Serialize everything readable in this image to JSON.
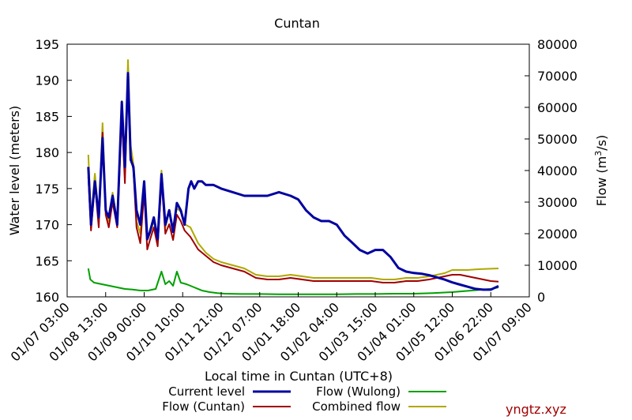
{
  "chart_data": {
    "type": "line",
    "title": "Cuntan",
    "xlabel": "Local time in Cuntan (UTC+8)",
    "ylabel_left": "Water level (meters)",
    "ylabel_right": "Flow (m",
    "ylabel_right_sup": "3",
    "ylabel_right_tail": "/s)",
    "x_ticks": [
      "01/07 03:00",
      "01/08 13:00",
      "01/09 00:00",
      "01/10 10:00",
      "01/11 21:00",
      "01/12 07:00",
      "01/01 18:00",
      "01/02 04:00",
      "01/03 15:00",
      "01/04 01:00",
      "01/05 12:00",
      "01/06 22:00",
      "01/07 09:00"
    ],
    "y_left_ticks": [
      160,
      165,
      170,
      175,
      180,
      185,
      190,
      195
    ],
    "y_right_ticks": [
      0,
      10000,
      20000,
      30000,
      40000,
      50000,
      60000,
      70000,
      80000
    ],
    "ylim_left": [
      160,
      195
    ],
    "ylim_right": [
      0,
      80000
    ],
    "x_range": [
      0,
      12
    ],
    "series": [
      {
        "name": "Current level",
        "axis": "left",
        "color": "#0000a0",
        "x": [
          0.55,
          0.62,
          0.72,
          0.82,
          0.92,
          1.0,
          1.08,
          1.18,
          1.3,
          1.42,
          1.5,
          1.58,
          1.65,
          1.72,
          1.8,
          1.9,
          2.0,
          2.08,
          2.15,
          2.25,
          2.35,
          2.45,
          2.55,
          2.65,
          2.75,
          2.85,
          2.95,
          3.05,
          3.15,
          3.22,
          3.3,
          3.4,
          3.5,
          3.6,
          3.8,
          4.0,
          4.3,
          4.6,
          4.9,
          5.2,
          5.5,
          5.8,
          6.0,
          6.2,
          6.4,
          6.6,
          6.8,
          7.0,
          7.2,
          7.4,
          7.6,
          7.8,
          8.0,
          8.2,
          8.4,
          8.6,
          8.8,
          9.0,
          9.2,
          9.4,
          9.6,
          9.8,
          10.0,
          10.2,
          10.4,
          10.6,
          10.8,
          11.0,
          11.2
        ],
        "y": [
          178,
          170,
          176,
          171,
          182,
          172,
          171,
          174,
          170,
          187,
          178,
          191,
          179,
          178,
          172,
          170,
          176,
          168,
          169,
          171,
          168,
          177,
          170,
          172,
          169,
          173,
          172,
          170,
          175,
          176,
          175,
          176,
          176,
          175.5,
          175.5,
          175,
          174.5,
          174,
          174,
          174,
          174.5,
          174,
          173.5,
          172,
          171,
          170.5,
          170.5,
          170,
          168.5,
          167.5,
          166.5,
          166,
          166.5,
          166.5,
          165.5,
          164,
          163.5,
          163.3,
          163.2,
          163,
          162.7,
          162.4,
          162,
          161.7,
          161.4,
          161.1,
          161,
          161,
          161.5
        ]
      },
      {
        "name": "Flow (Cuntan)",
        "axis": "right",
        "color": "#a00000",
        "x": [
          0.55,
          0.62,
          0.72,
          0.82,
          0.92,
          1.0,
          1.08,
          1.18,
          1.3,
          1.42,
          1.5,
          1.58,
          1.65,
          1.72,
          1.8,
          1.9,
          2.0,
          2.08,
          2.15,
          2.25,
          2.35,
          2.45,
          2.55,
          2.65,
          2.75,
          2.85,
          2.95,
          3.05,
          3.2,
          3.4,
          3.6,
          3.8,
          4.0,
          4.3,
          4.6,
          4.9,
          5.2,
          5.5,
          5.8,
          6.1,
          6.4,
          6.7,
          7.0,
          7.3,
          7.6,
          7.9,
          8.2,
          8.5,
          8.8,
          9.1,
          9.4,
          9.6,
          9.8,
          10.0,
          10.2,
          10.4,
          10.6,
          10.8,
          11.0,
          11.2
        ],
        "y": [
          38000,
          21000,
          36000,
          22000,
          52000,
          26000,
          22000,
          30000,
          22000,
          57000,
          36000,
          70000,
          45000,
          40000,
          22000,
          17000,
          33000,
          15000,
          18000,
          22000,
          16000,
          37000,
          20000,
          23000,
          18000,
          26000,
          24000,
          21000,
          19000,
          15000,
          13000,
          11000,
          10000,
          9000,
          8000,
          6000,
          5500,
          5500,
          6000,
          5500,
          5000,
          5000,
          5000,
          5000,
          5000,
          5000,
          4500,
          4500,
          5000,
          5000,
          5500,
          6000,
          6500,
          7000,
          7000,
          6500,
          6000,
          5500,
          5000,
          4800
        ]
      },
      {
        "name": "Flow (Wulong)",
        "axis": "right",
        "color": "#00a000",
        "x": [
          0.55,
          0.6,
          0.7,
          0.9,
          1.1,
          1.3,
          1.5,
          1.7,
          1.9,
          2.1,
          2.3,
          2.45,
          2.55,
          2.65,
          2.75,
          2.85,
          2.95,
          3.1,
          3.3,
          3.5,
          3.7,
          3.9,
          4.1,
          4.5,
          5.0,
          5.5,
          6.0,
          6.5,
          7.0,
          7.5,
          8.0,
          8.5,
          9.0,
          9.5,
          10.0,
          10.5,
          11.0,
          11.2
        ],
        "y": [
          9000,
          5500,
          4500,
          4000,
          3500,
          3000,
          2500,
          2300,
          2000,
          2000,
          2500,
          8000,
          4000,
          5000,
          3500,
          8000,
          4500,
          4000,
          3000,
          2000,
          1500,
          1200,
          1000,
          900,
          900,
          800,
          800,
          800,
          800,
          900,
          900,
          1000,
          1000,
          1200,
          1500,
          2000,
          2500,
          3000
        ]
      },
      {
        "name": "Combined flow",
        "axis": "right",
        "color": "#b0a800",
        "x": [
          0.55,
          0.62,
          0.72,
          0.82,
          0.92,
          1.0,
          1.08,
          1.18,
          1.3,
          1.42,
          1.5,
          1.58,
          1.65,
          1.72,
          1.8,
          1.9,
          2.0,
          2.08,
          2.15,
          2.25,
          2.35,
          2.45,
          2.55,
          2.65,
          2.75,
          2.85,
          2.95,
          3.05,
          3.2,
          3.4,
          3.6,
          3.8,
          4.0,
          4.3,
          4.6,
          4.9,
          5.2,
          5.5,
          5.8,
          6.1,
          6.4,
          6.7,
          7.0,
          7.3,
          7.6,
          7.9,
          8.2,
          8.5,
          8.8,
          9.1,
          9.4,
          9.6,
          9.8,
          10.0,
          10.2,
          10.4,
          10.6,
          10.8,
          11.0,
          11.2
        ],
        "y": [
          45000,
          25000,
          39000,
          26000,
          55000,
          28000,
          24000,
          33000,
          24000,
          62000,
          40000,
          75000,
          48000,
          42000,
          24000,
          20000,
          35000,
          18000,
          20000,
          24000,
          19000,
          40000,
          22000,
          27000,
          22000,
          28000,
          27000,
          23000,
          22000,
          17000,
          14000,
          12000,
          11000,
          10000,
          9000,
          7000,
          6500,
          6500,
          7000,
          6500,
          6000,
          6000,
          6000,
          6000,
          6000,
          6000,
          5500,
          5500,
          6000,
          6000,
          6500,
          7000,
          7500,
          8500,
          8500,
          8500,
          8700,
          8800,
          8900,
          9000
        ]
      }
    ],
    "legend": [
      {
        "label": "Current level",
        "color": "#0000a0"
      },
      {
        "label": "Flow (Wulong)",
        "color": "#00a000"
      },
      {
        "label": "Flow (Cuntan)",
        "color": "#a00000"
      },
      {
        "label": "Combined flow",
        "color": "#b0a800"
      }
    ],
    "watermark": "yngtz.xyz",
    "legend_placement": "bottom",
    "grid": false
  }
}
